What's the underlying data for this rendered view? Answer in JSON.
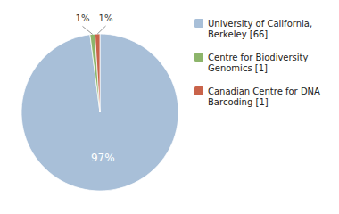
{
  "chart_data": {
    "type": "pie",
    "categories": [
      "University of California,\nBerkeley [66]",
      "Centre for Biodiversity\nGenomics [1]",
      "Canadian Centre for DNA\nBarcoding [1]"
    ],
    "values": [
      97,
      1,
      1
    ],
    "value_labels": [
      "97%",
      "1%",
      "1%"
    ],
    "colors": [
      "#a8bfd8",
      "#8db56b",
      "#c9634a"
    ],
    "data_labels": true,
    "legend": "right"
  }
}
